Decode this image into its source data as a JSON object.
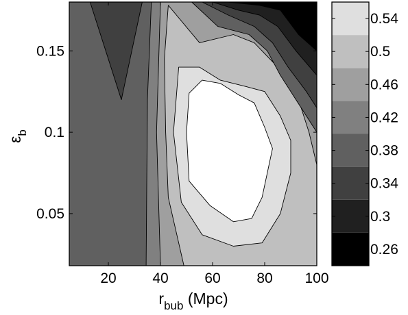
{
  "chart_data": {
    "type": "contour",
    "title": "",
    "xlabel": {
      "main": "r",
      "sub": "bub",
      "tail": " (Mpc)"
    },
    "ylabel": {
      "main": "ε",
      "sub": "b"
    },
    "xlim": [
      5,
      100
    ],
    "ylim": [
      0.018,
      0.18
    ],
    "xticks": [
      {
        "value": 20,
        "label": "20"
      },
      {
        "value": 40,
        "label": "40"
      },
      {
        "value": 60,
        "label": "60"
      },
      {
        "value": 80,
        "label": "80"
      },
      {
        "value": 100,
        "label": "100"
      }
    ],
    "yticks": [
      {
        "value": 0.05,
        "label": "0.05"
      },
      {
        "value": 0.1,
        "label": "0.1"
      },
      {
        "value": 0.15,
        "label": "0.15"
      }
    ],
    "colorbar": {
      "range": [
        0.24,
        0.56
      ],
      "levels": [
        0.24,
        0.28,
        0.32,
        0.36,
        0.4,
        0.44,
        0.48,
        0.52,
        0.56
      ],
      "ticks": [
        {
          "value": 0.26,
          "label": "0.26"
        },
        {
          "value": 0.3,
          "label": "0.3"
        },
        {
          "value": 0.34,
          "label": "0.34"
        },
        {
          "value": 0.38,
          "label": "0.38"
        },
        {
          "value": 0.42,
          "label": "0.42"
        },
        {
          "value": 0.46,
          "label": "0.46"
        },
        {
          "value": 0.5,
          "label": "0.5"
        },
        {
          "value": 0.54,
          "label": "0.54"
        }
      ],
      "colors": [
        "#000000",
        "#202020",
        "#404040",
        "#606060",
        "#808080",
        "#9f9f9f",
        "#bfbfbf",
        "#dfdfdf",
        "#ffffff"
      ]
    },
    "regions": [
      {
        "name": "low-band-0.36-0.40",
        "level": 0.38,
        "points": [
          [
            5,
            0.018
          ],
          [
            5,
            0.18
          ],
          [
            100,
            0.18
          ],
          [
            100,
            0.018
          ]
        ]
      },
      {
        "name": "spike-0.32-0.36",
        "level": 0.34,
        "points": [
          [
            13,
            0.18
          ],
          [
            25,
            0.12
          ],
          [
            33,
            0.18
          ]
        ]
      },
      {
        "name": "band-0.40-0.44",
        "level": 0.42,
        "points": [
          [
            34.5,
            0.018
          ],
          [
            35,
            0.12
          ],
          [
            36.5,
            0.18
          ],
          [
            100,
            0.18
          ],
          [
            100,
            0.018
          ]
        ]
      },
      {
        "name": "band-0.44-0.48",
        "level": 0.46,
        "points": [
          [
            40,
            0.018
          ],
          [
            38.5,
            0.1
          ],
          [
            40,
            0.18
          ],
          [
            100,
            0.18
          ],
          [
            100,
            0.018
          ]
        ]
      },
      {
        "name": "band-0.48-0.52",
        "level": 0.5,
        "points": [
          [
            49,
            0.018
          ],
          [
            43,
            0.06
          ],
          [
            42,
            0.1
          ],
          [
            41.5,
            0.145
          ],
          [
            43,
            0.178
          ],
          [
            55,
            0.155
          ],
          [
            68,
            0.16
          ],
          [
            76,
            0.155
          ],
          [
            85,
            0.14
          ],
          [
            93,
            0.12
          ],
          [
            97,
            0.1
          ],
          [
            100,
            0.08
          ],
          [
            100,
            0.018
          ]
        ]
      },
      {
        "name": "band-0.52-0.56",
        "level": 0.54,
        "points": [
          [
            47,
            0.14
          ],
          [
            45,
            0.1
          ],
          [
            48,
            0.057
          ],
          [
            56,
            0.037
          ],
          [
            68,
            0.03
          ],
          [
            79,
            0.032
          ],
          [
            86,
            0.05
          ],
          [
            90,
            0.075
          ],
          [
            90,
            0.095
          ],
          [
            86,
            0.11
          ],
          [
            80,
            0.125
          ],
          [
            73,
            0.128
          ],
          [
            63,
            0.132
          ],
          [
            55,
            0.14
          ]
        ]
      },
      {
        "name": "peak-above-0.56",
        "level": 0.58,
        "points": [
          [
            51,
            0.124
          ],
          [
            50,
            0.1
          ],
          [
            51,
            0.07
          ],
          [
            59,
            0.055
          ],
          [
            68,
            0.045
          ],
          [
            75,
            0.047
          ],
          [
            79,
            0.06
          ],
          [
            83,
            0.09
          ],
          [
            80,
            0.103
          ],
          [
            76,
            0.118
          ],
          [
            70,
            0.123
          ],
          [
            63,
            0.13
          ],
          [
            56,
            0.132
          ]
        ]
      },
      {
        "name": "band-0.36-0.40-right",
        "level": 0.38,
        "points": [
          [
            52,
            0.18
          ],
          [
            62,
            0.165
          ],
          [
            74,
            0.16
          ],
          [
            81,
            0.15
          ],
          [
            86,
            0.135
          ],
          [
            94,
            0.115
          ],
          [
            100,
            0.1
          ],
          [
            100,
            0.18
          ]
        ]
      },
      {
        "name": "band-0.32-0.36-right",
        "level": 0.34,
        "points": [
          [
            56,
            0.18
          ],
          [
            66,
            0.172
          ],
          [
            76,
            0.165
          ],
          [
            83,
            0.155
          ],
          [
            89,
            0.14
          ],
          [
            96,
            0.125
          ],
          [
            100,
            0.115
          ],
          [
            100,
            0.18
          ]
        ]
      },
      {
        "name": "band-0.28-0.32-top",
        "level": 0.3,
        "points": [
          [
            60,
            0.18
          ],
          [
            70,
            0.175
          ],
          [
            78,
            0.172
          ],
          [
            85,
            0.165
          ],
          [
            92,
            0.15
          ],
          [
            100,
            0.135
          ],
          [
            100,
            0.18
          ]
        ]
      },
      {
        "name": "band-0.24-0.28-top",
        "level": 0.26,
        "points": [
          [
            66,
            0.18
          ],
          [
            78,
            0.178
          ],
          [
            86,
            0.175
          ],
          [
            93,
            0.16
          ],
          [
            100,
            0.15
          ],
          [
            100,
            0.18
          ]
        ]
      },
      {
        "name": "corner-below-0.24",
        "level": 0.22,
        "points": [
          [
            85,
            0.18
          ],
          [
            90,
            0.175
          ],
          [
            95,
            0.17
          ],
          [
            100,
            0.168
          ],
          [
            100,
            0.18
          ]
        ]
      }
    ]
  }
}
